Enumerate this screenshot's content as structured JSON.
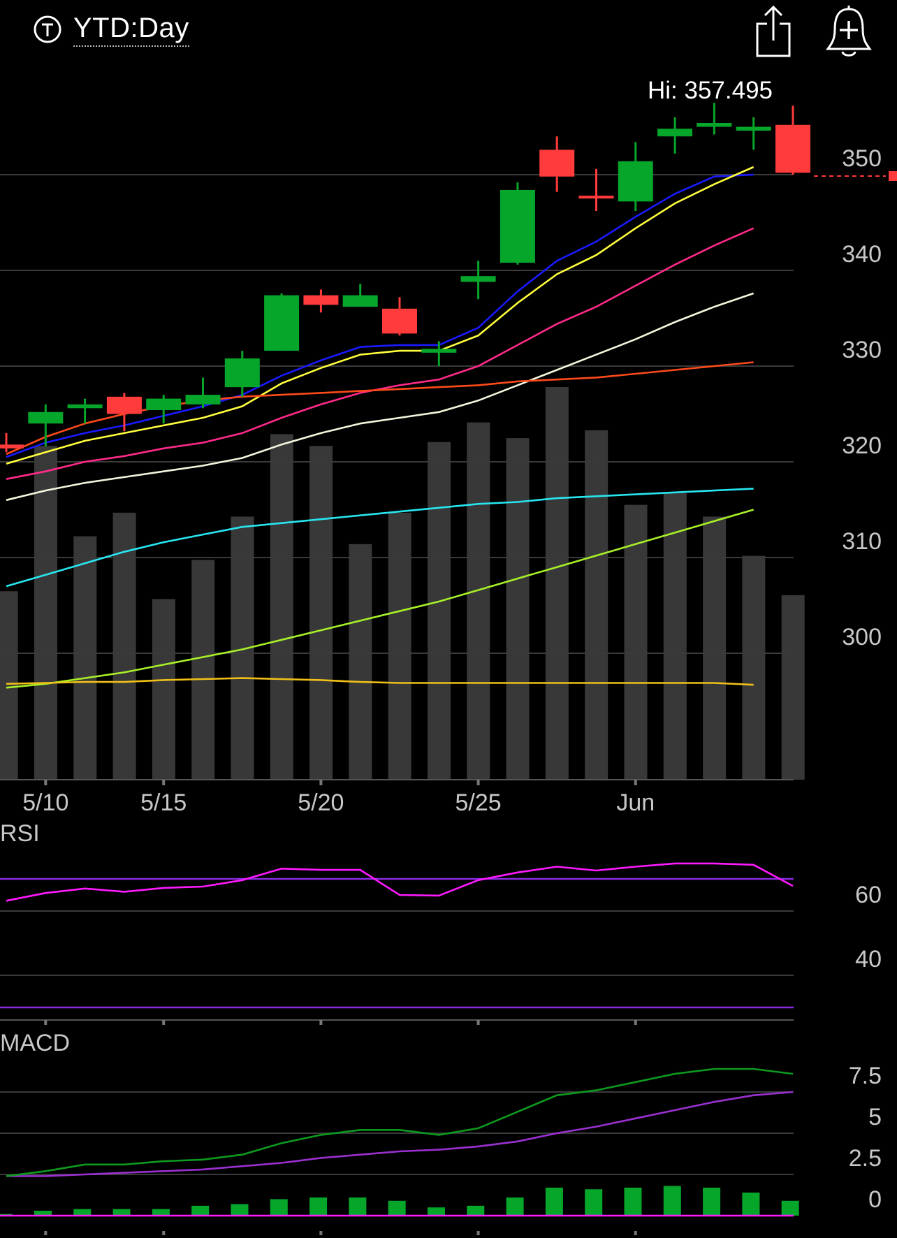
{
  "header": {
    "range_label": "YTD:Day",
    "ticker_icon": "t-circle-icon",
    "share_icon": "share-icon",
    "alert_icon": "add-alert-bell-icon",
    "hi_label": "Hi: 357.495"
  },
  "colors": {
    "up": "#06a62a",
    "down": "#ff3b3b",
    "volume": "#383838",
    "grid": "#3a3a3a",
    "axis_text": "#c8c8c8"
  },
  "chart_data": [
    {
      "type": "candlestick",
      "name": "price",
      "ylim": [
        294,
        358
      ],
      "y_ticks": [
        300,
        310,
        320,
        330,
        340,
        350
      ],
      "x_labels": [
        {
          "label": "5/10",
          "index": 1
        },
        {
          "label": "5/15",
          "index": 4
        },
        {
          "label": "5/20",
          "index": 8
        },
        {
          "label": "5/25",
          "index": 12
        },
        {
          "label": "Jun",
          "index": 16
        }
      ],
      "last_price_line": 350,
      "candles": [
        {
          "open": 321.8,
          "close": 321.4,
          "high": 323.0,
          "low": 321.0
        },
        {
          "open": 324.0,
          "close": 325.2,
          "high": 326.0,
          "low": 321.6
        },
        {
          "open": 325.6,
          "close": 326.0,
          "high": 326.6,
          "low": 324.0
        },
        {
          "open": 326.8,
          "close": 325.0,
          "high": 327.2,
          "low": 323.2
        },
        {
          "open": 325.4,
          "close": 326.6,
          "high": 327.0,
          "low": 324.0
        },
        {
          "open": 326.0,
          "close": 327.0,
          "high": 328.8,
          "low": 325.6
        },
        {
          "open": 327.8,
          "close": 330.8,
          "high": 331.6,
          "low": 326.8
        },
        {
          "open": 331.6,
          "close": 337.4,
          "high": 337.6,
          "low": 331.6
        },
        {
          "open": 337.4,
          "close": 336.4,
          "high": 338.0,
          "low": 335.6
        },
        {
          "open": 336.2,
          "close": 337.4,
          "high": 338.6,
          "low": 336.2
        },
        {
          "open": 336.0,
          "close": 333.4,
          "high": 337.2,
          "low": 333.2
        },
        {
          "open": 331.4,
          "close": 331.8,
          "high": 332.6,
          "low": 330.0
        },
        {
          "open": 338.8,
          "close": 339.4,
          "high": 341.0,
          "low": 337.0
        },
        {
          "open": 340.8,
          "close": 348.4,
          "high": 349.2,
          "low": 340.6
        },
        {
          "open": 352.6,
          "close": 349.8,
          "high": 354.0,
          "low": 348.2
        },
        {
          "open": 347.8,
          "close": 347.6,
          "high": 350.6,
          "low": 346.2
        },
        {
          "open": 347.2,
          "close": 351.4,
          "high": 353.4,
          "low": 346.2
        },
        {
          "open": 354.0,
          "close": 354.8,
          "high": 356.0,
          "low": 352.2
        },
        {
          "open": 355.0,
          "close": 355.4,
          "high": 357.5,
          "low": 354.2
        },
        {
          "open": 354.6,
          "close": 355.0,
          "high": 356.0,
          "low": 352.6
        },
        {
          "open": 355.2,
          "close": 350.2,
          "high": 357.2,
          "low": 350.0
        }
      ],
      "moving_averages": [
        {
          "color": "#1a1aff",
          "values": [
            320.5,
            322.0,
            323.0,
            323.8,
            324.8,
            325.8,
            327.0,
            329.0,
            330.6,
            332.0,
            332.2,
            332.2,
            334.0,
            337.8,
            341.0,
            343.0,
            345.6,
            348.0,
            349.8,
            350.0,
            null
          ]
        },
        {
          "color": "#ffff3c",
          "values": [
            319.8,
            321.0,
            322.2,
            323.0,
            323.8,
            324.6,
            325.8,
            328.2,
            329.8,
            331.2,
            331.6,
            331.6,
            333.2,
            336.6,
            339.6,
            341.6,
            344.4,
            347.0,
            349.0,
            350.8,
            null
          ]
        },
        {
          "color": "#ff2a8a",
          "values": [
            318.2,
            319.0,
            320.0,
            320.6,
            321.4,
            322.0,
            323.0,
            324.6,
            326.0,
            327.2,
            328.0,
            328.6,
            330.0,
            332.2,
            334.4,
            336.2,
            338.4,
            340.6,
            342.6,
            344.4,
            null
          ]
        },
        {
          "color": "#f5f5dc",
          "values": [
            316.0,
            317.0,
            317.8,
            318.4,
            319.0,
            319.6,
            320.4,
            321.8,
            323.0,
            324.0,
            324.6,
            325.2,
            326.4,
            328.0,
            329.6,
            331.2,
            332.8,
            334.6,
            336.2,
            337.6,
            null
          ]
        },
        {
          "color": "#ff4a1a",
          "values": [
            320.8,
            322.6,
            324.0,
            325.0,
            325.8,
            326.4,
            326.8,
            327.0,
            327.2,
            327.4,
            327.6,
            327.8,
            328.0,
            328.4,
            328.6,
            328.8,
            329.2,
            329.6,
            330.0,
            330.4,
            null
          ]
        },
        {
          "color": "#28e6f0",
          "values": [
            307.0,
            308.2,
            309.4,
            310.6,
            311.6,
            312.4,
            313.2,
            313.6,
            314.0,
            314.4,
            314.8,
            315.2,
            315.6,
            315.8,
            316.2,
            316.4,
            316.6,
            316.8,
            317.0,
            317.2,
            null
          ]
        },
        {
          "color": "#a8f028",
          "values": [
            296.4,
            296.8,
            297.4,
            298.0,
            298.8,
            299.6,
            300.4,
            301.4,
            302.4,
            303.4,
            304.4,
            305.4,
            306.6,
            307.8,
            309.0,
            310.2,
            311.4,
            312.6,
            313.8,
            315.0,
            null
          ]
        },
        {
          "color": "#f0c018",
          "values": [
            296.8,
            296.9,
            297.0,
            297.0,
            297.2,
            297.3,
            297.4,
            297.3,
            297.2,
            297.0,
            296.9,
            296.9,
            296.9,
            296.9,
            296.9,
            296.9,
            296.9,
            296.9,
            296.9,
            296.7,
            null
          ]
        }
      ],
      "volume": [
        {
          "value": 0.48
        },
        {
          "value": 0.85
        },
        {
          "value": 0.62
        },
        {
          "value": 0.68
        },
        {
          "value": 0.46
        },
        {
          "value": 0.56
        },
        {
          "value": 0.67
        },
        {
          "value": 0.88
        },
        {
          "value": 0.85
        },
        {
          "value": 0.6
        },
        {
          "value": 0.68
        },
        {
          "value": 0.86
        },
        {
          "value": 0.91
        },
        {
          "value": 0.87
        },
        {
          "value": 1.0
        },
        {
          "value": 0.89
        },
        {
          "value": 0.7
        },
        {
          "value": 0.73
        },
        {
          "value": 0.67
        },
        {
          "value": 0.57
        },
        {
          "value": 0.47
        }
      ]
    },
    {
      "type": "line",
      "name": "RSI",
      "title": "RSI",
      "ylim": [
        25,
        80
      ],
      "y_ticks": [
        40,
        60
      ],
      "upper_line": 70,
      "lower_line": 30,
      "values": [
        63.2,
        65.6,
        67.0,
        66.0,
        67.2,
        67.6,
        69.6,
        73.2,
        72.8,
        72.8,
        65.0,
        64.8,
        69.6,
        72.0,
        73.8,
        72.6,
        73.8,
        74.8,
        74.8,
        74.4,
        67.8
      ]
    },
    {
      "type": "line",
      "name": "MACD",
      "title": "MACD",
      "ylim": [
        -1,
        10
      ],
      "y_ticks": [
        0,
        2.5,
        5,
        7.5
      ],
      "macd": [
        2.4,
        2.7,
        3.1,
        3.1,
        3.3,
        3.4,
        3.7,
        4.4,
        4.9,
        5.2,
        5.2,
        4.9,
        5.3,
        6.3,
        7.3,
        7.6,
        8.1,
        8.6,
        8.9,
        8.9,
        8.6
      ],
      "signal": [
        2.4,
        2.4,
        2.5,
        2.6,
        2.7,
        2.8,
        3.0,
        3.2,
        3.5,
        3.7,
        3.9,
        4.0,
        4.2,
        4.5,
        5.0,
        5.4,
        5.9,
        6.4,
        6.9,
        7.3,
        7.5
      ],
      "histogram": [
        0.1,
        0.3,
        0.4,
        0.4,
        0.4,
        0.6,
        0.7,
        1.0,
        1.1,
        1.1,
        0.9,
        0.5,
        0.6,
        1.1,
        1.7,
        1.6,
        1.7,
        1.8,
        1.7,
        1.4,
        0.9
      ]
    }
  ]
}
